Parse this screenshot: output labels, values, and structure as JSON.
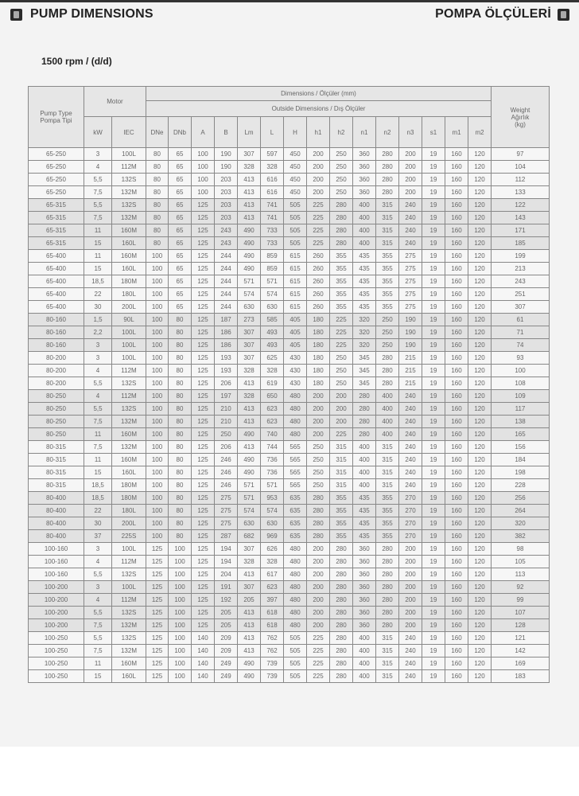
{
  "header": {
    "title_left": "PUMP DIMENSIONS",
    "title_right": "POMPA ÖLÇÜLERİ",
    "icon": "book-icon"
  },
  "subtitle": "1500 rpm / (d/d)",
  "table": {
    "pump_type_label": "Pump Type",
    "pump_type_label_tr": "Pompa Tipi",
    "motor_label": "Motor",
    "dimensions_label": "Dimensions / Ölçüler (mm)",
    "outside_label": "Outside Dimensions / Dış Ölçüler",
    "weight_label": "Weight",
    "weight_label_tr": "Ağırlık",
    "weight_unit": "(kg)",
    "columns": [
      "kW",
      "IEC",
      "DNe",
      "DNb",
      "A",
      "B",
      "Lm",
      "L",
      "H",
      "h1",
      "h2",
      "n1",
      "n2",
      "n3",
      "s1",
      "m1",
      "m2"
    ],
    "row_colors": {
      "light": "#f6f6f6",
      "gray": "#e2e2e2"
    },
    "rows": [
      [
        "65-250",
        "3",
        "100L",
        "80",
        "65",
        "100",
        "190",
        "307",
        "597",
        "450",
        "200",
        "250",
        "360",
        "280",
        "200",
        "19",
        "160",
        "120",
        "97"
      ],
      [
        "65-250",
        "4",
        "112M",
        "80",
        "65",
        "100",
        "190",
        "328",
        "328",
        "450",
        "200",
        "250",
        "360",
        "280",
        "200",
        "19",
        "160",
        "120",
        "104"
      ],
      [
        "65-250",
        "5,5",
        "132S",
        "80",
        "65",
        "100",
        "203",
        "413",
        "616",
        "450",
        "200",
        "250",
        "360",
        "280",
        "200",
        "19",
        "160",
        "120",
        "112"
      ],
      [
        "65-250",
        "7,5",
        "132M",
        "80",
        "65",
        "100",
        "203",
        "413",
        "616",
        "450",
        "200",
        "250",
        "360",
        "280",
        "200",
        "19",
        "160",
        "120",
        "133"
      ],
      [
        "65-315",
        "5,5",
        "132S",
        "80",
        "65",
        "125",
        "203",
        "413",
        "741",
        "505",
        "225",
        "280",
        "400",
        "315",
        "240",
        "19",
        "160",
        "120",
        "122"
      ],
      [
        "65-315",
        "7,5",
        "132M",
        "80",
        "65",
        "125",
        "203",
        "413",
        "741",
        "505",
        "225",
        "280",
        "400",
        "315",
        "240",
        "19",
        "160",
        "120",
        "143"
      ],
      [
        "65-315",
        "11",
        "160M",
        "80",
        "65",
        "125",
        "243",
        "490",
        "733",
        "505",
        "225",
        "280",
        "400",
        "315",
        "240",
        "19",
        "160",
        "120",
        "171"
      ],
      [
        "65-315",
        "15",
        "160L",
        "80",
        "65",
        "125",
        "243",
        "490",
        "733",
        "505",
        "225",
        "280",
        "400",
        "315",
        "240",
        "19",
        "160",
        "120",
        "185"
      ],
      [
        "65-400",
        "11",
        "160M",
        "100",
        "65",
        "125",
        "244",
        "490",
        "859",
        "615",
        "260",
        "355",
        "435",
        "355",
        "275",
        "19",
        "160",
        "120",
        "199"
      ],
      [
        "65-400",
        "15",
        "160L",
        "100",
        "65",
        "125",
        "244",
        "490",
        "859",
        "615",
        "260",
        "355",
        "435",
        "355",
        "275",
        "19",
        "160",
        "120",
        "213"
      ],
      [
        "65-400",
        "18,5",
        "180M",
        "100",
        "65",
        "125",
        "244",
        "571",
        "571",
        "615",
        "260",
        "355",
        "435",
        "355",
        "275",
        "19",
        "160",
        "120",
        "243"
      ],
      [
        "65-400",
        "22",
        "180L",
        "100",
        "65",
        "125",
        "244",
        "574",
        "574",
        "615",
        "260",
        "355",
        "435",
        "355",
        "275",
        "19",
        "160",
        "120",
        "251"
      ],
      [
        "65-400",
        "30",
        "200L",
        "100",
        "65",
        "125",
        "244",
        "630",
        "630",
        "615",
        "260",
        "355",
        "435",
        "355",
        "275",
        "19",
        "160",
        "120",
        "307"
      ],
      [
        "80-160",
        "1,5",
        "90L",
        "100",
        "80",
        "125",
        "187",
        "273",
        "585",
        "405",
        "180",
        "225",
        "320",
        "250",
        "190",
        "19",
        "160",
        "120",
        "61"
      ],
      [
        "80-160",
        "2,2",
        "100L",
        "100",
        "80",
        "125",
        "186",
        "307",
        "493",
        "405",
        "180",
        "225",
        "320",
        "250",
        "190",
        "19",
        "160",
        "120",
        "71"
      ],
      [
        "80-160",
        "3",
        "100L",
        "100",
        "80",
        "125",
        "186",
        "307",
        "493",
        "405",
        "180",
        "225",
        "320",
        "250",
        "190",
        "19",
        "160",
        "120",
        "74"
      ],
      [
        "80-200",
        "3",
        "100L",
        "100",
        "80",
        "125",
        "193",
        "307",
        "625",
        "430",
        "180",
        "250",
        "345",
        "280",
        "215",
        "19",
        "160",
        "120",
        "93"
      ],
      [
        "80-200",
        "4",
        "112M",
        "100",
        "80",
        "125",
        "193",
        "328",
        "328",
        "430",
        "180",
        "250",
        "345",
        "280",
        "215",
        "19",
        "160",
        "120",
        "100"
      ],
      [
        "80-200",
        "5,5",
        "132S",
        "100",
        "80",
        "125",
        "206",
        "413",
        "619",
        "430",
        "180",
        "250",
        "345",
        "280",
        "215",
        "19",
        "160",
        "120",
        "108"
      ],
      [
        "80-250",
        "4",
        "112M",
        "100",
        "80",
        "125",
        "197",
        "328",
        "650",
        "480",
        "200",
        "200",
        "280",
        "400",
        "240",
        "19",
        "160",
        "120",
        "109"
      ],
      [
        "80-250",
        "5,5",
        "132S",
        "100",
        "80",
        "125",
        "210",
        "413",
        "623",
        "480",
        "200",
        "200",
        "280",
        "400",
        "240",
        "19",
        "160",
        "120",
        "117"
      ],
      [
        "80-250",
        "7,5",
        "132M",
        "100",
        "80",
        "125",
        "210",
        "413",
        "623",
        "480",
        "200",
        "200",
        "280",
        "400",
        "240",
        "19",
        "160",
        "120",
        "138"
      ],
      [
        "80-250",
        "11",
        "160M",
        "100",
        "80",
        "125",
        "250",
        "490",
        "740",
        "480",
        "200",
        "225",
        "280",
        "400",
        "240",
        "19",
        "160",
        "120",
        "165"
      ],
      [
        "80-315",
        "7,5",
        "132M",
        "100",
        "80",
        "125",
        "206",
        "413",
        "744",
        "565",
        "250",
        "315",
        "400",
        "315",
        "240",
        "19",
        "160",
        "120",
        "156"
      ],
      [
        "80-315",
        "11",
        "160M",
        "100",
        "80",
        "125",
        "246",
        "490",
        "736",
        "565",
        "250",
        "315",
        "400",
        "315",
        "240",
        "19",
        "160",
        "120",
        "184"
      ],
      [
        "80-315",
        "15",
        "160L",
        "100",
        "80",
        "125",
        "246",
        "490",
        "736",
        "565",
        "250",
        "315",
        "400",
        "315",
        "240",
        "19",
        "160",
        "120",
        "198"
      ],
      [
        "80-315",
        "18,5",
        "180M",
        "100",
        "80",
        "125",
        "246",
        "571",
        "571",
        "565",
        "250",
        "315",
        "400",
        "315",
        "240",
        "19",
        "160",
        "120",
        "228"
      ],
      [
        "80-400",
        "18,5",
        "180M",
        "100",
        "80",
        "125",
        "275",
        "571",
        "953",
        "635",
        "280",
        "355",
        "435",
        "355",
        "270",
        "19",
        "160",
        "120",
        "256"
      ],
      [
        "80-400",
        "22",
        "180L",
        "100",
        "80",
        "125",
        "275",
        "574",
        "574",
        "635",
        "280",
        "355",
        "435",
        "355",
        "270",
        "19",
        "160",
        "120",
        "264"
      ],
      [
        "80-400",
        "30",
        "200L",
        "100",
        "80",
        "125",
        "275",
        "630",
        "630",
        "635",
        "280",
        "355",
        "435",
        "355",
        "270",
        "19",
        "160",
        "120",
        "320"
      ],
      [
        "80-400",
        "37",
        "225S",
        "100",
        "80",
        "125",
        "287",
        "682",
        "969",
        "635",
        "280",
        "355",
        "435",
        "355",
        "270",
        "19",
        "160",
        "120",
        "382"
      ],
      [
        "100-160",
        "3",
        "100L",
        "125",
        "100",
        "125",
        "194",
        "307",
        "626",
        "480",
        "200",
        "280",
        "360",
        "280",
        "200",
        "19",
        "160",
        "120",
        "98"
      ],
      [
        "100-160",
        "4",
        "112M",
        "125",
        "100",
        "125",
        "194",
        "328",
        "328",
        "480",
        "200",
        "280",
        "360",
        "280",
        "200",
        "19",
        "160",
        "120",
        "105"
      ],
      [
        "100-160",
        "5,5",
        "132S",
        "125",
        "100",
        "125",
        "204",
        "413",
        "617",
        "480",
        "200",
        "280",
        "360",
        "280",
        "200",
        "19",
        "160",
        "120",
        "113"
      ],
      [
        "100-200",
        "3",
        "100L",
        "125",
        "100",
        "125",
        "191",
        "307",
        "623",
        "480",
        "200",
        "280",
        "360",
        "280",
        "200",
        "19",
        "160",
        "120",
        "92"
      ],
      [
        "100-200",
        "4",
        "112M",
        "125",
        "100",
        "125",
        "192",
        "205",
        "397",
        "480",
        "200",
        "280",
        "360",
        "280",
        "200",
        "19",
        "160",
        "120",
        "99"
      ],
      [
        "100-200",
        "5,5",
        "132S",
        "125",
        "100",
        "125",
        "205",
        "413",
        "618",
        "480",
        "200",
        "280",
        "360",
        "280",
        "200",
        "19",
        "160",
        "120",
        "107"
      ],
      [
        "100-200",
        "7,5",
        "132M",
        "125",
        "100",
        "125",
        "205",
        "413",
        "618",
        "480",
        "200",
        "280",
        "360",
        "280",
        "200",
        "19",
        "160",
        "120",
        "128"
      ],
      [
        "100-250",
        "5,5",
        "132S",
        "125",
        "100",
        "140",
        "209",
        "413",
        "762",
        "505",
        "225",
        "280",
        "400",
        "315",
        "240",
        "19",
        "160",
        "120",
        "121"
      ],
      [
        "100-250",
        "7,5",
        "132M",
        "125",
        "100",
        "140",
        "209",
        "413",
        "762",
        "505",
        "225",
        "280",
        "400",
        "315",
        "240",
        "19",
        "160",
        "120",
        "142"
      ],
      [
        "100-250",
        "11",
        "160M",
        "125",
        "100",
        "140",
        "249",
        "490",
        "739",
        "505",
        "225",
        "280",
        "400",
        "315",
        "240",
        "19",
        "160",
        "120",
        "169"
      ],
      [
        "100-250",
        "15",
        "160L",
        "125",
        "100",
        "140",
        "249",
        "490",
        "739",
        "505",
        "225",
        "280",
        "400",
        "315",
        "240",
        "19",
        "160",
        "120",
        "183"
      ]
    ]
  }
}
